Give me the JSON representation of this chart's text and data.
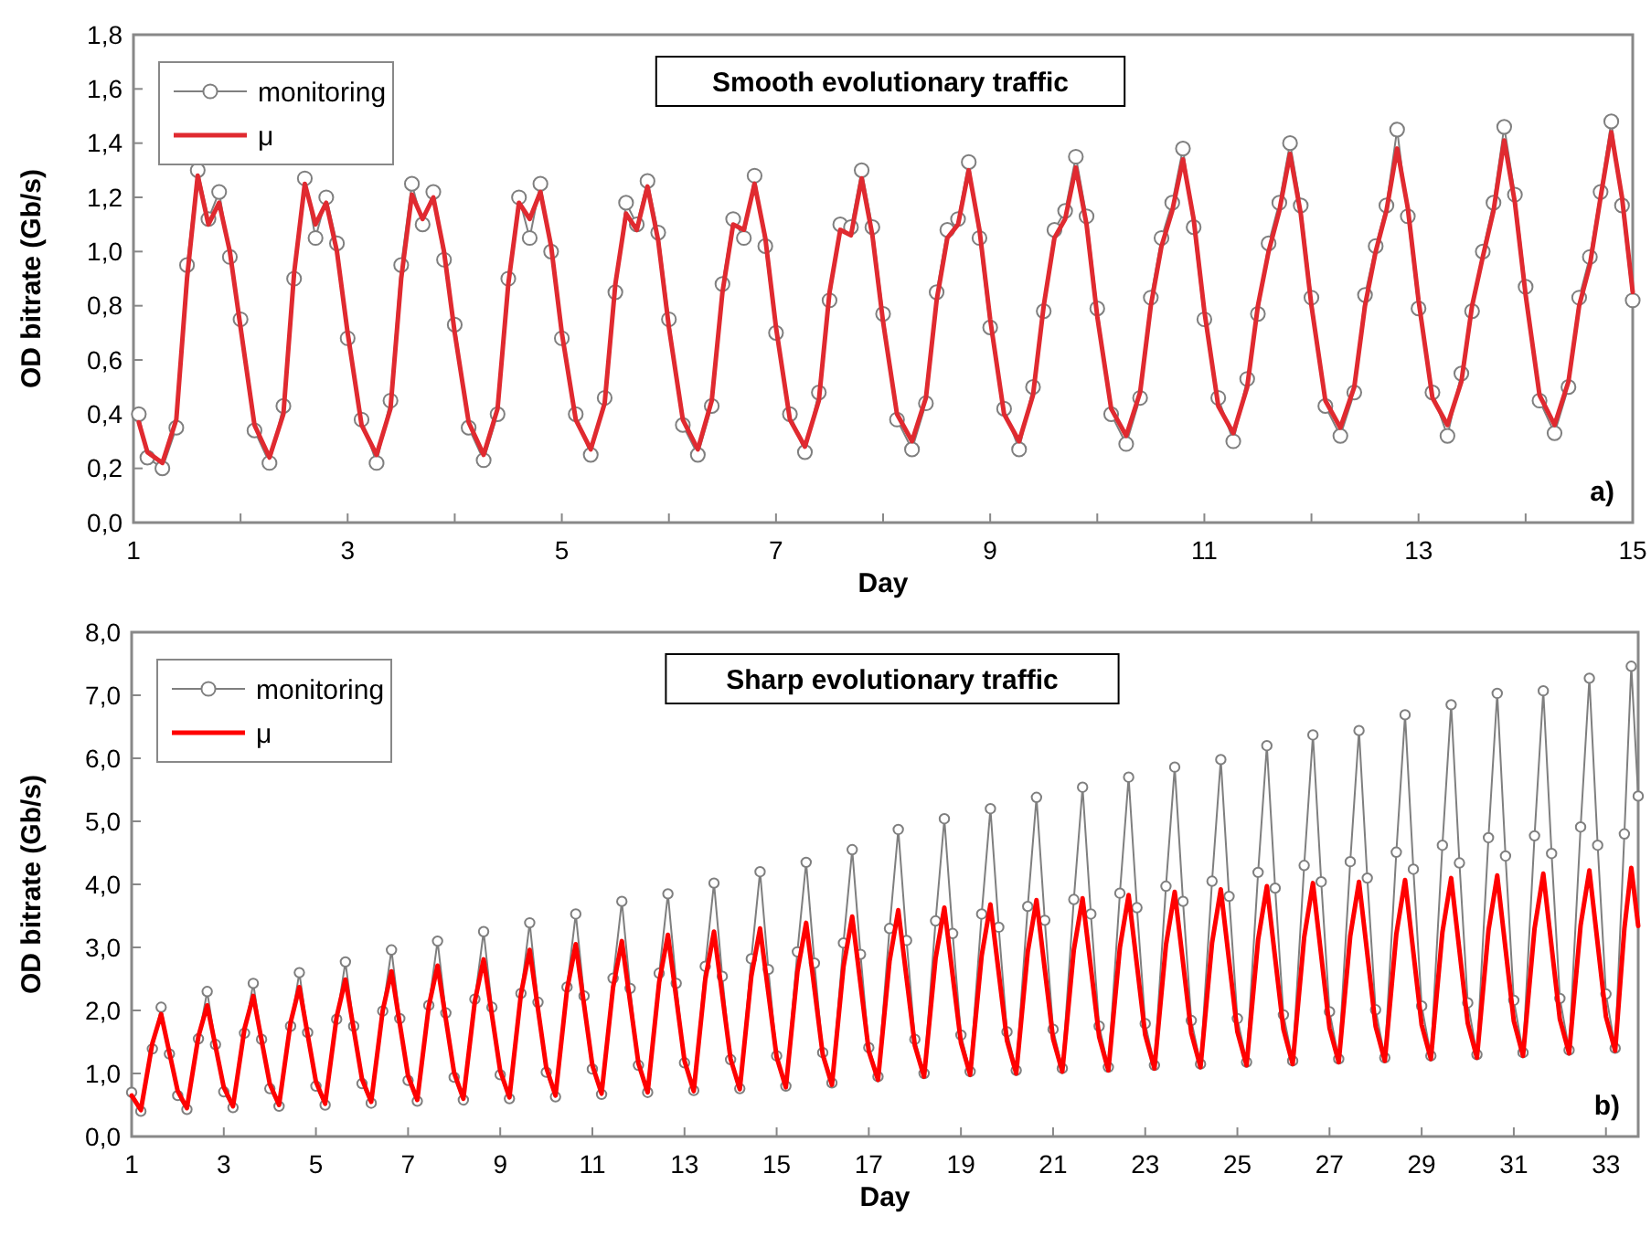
{
  "chart_data": [
    {
      "type": "line",
      "title": "Smooth evolutionary traffic",
      "xlabel": "Day",
      "ylabel": "OD bitrate (Gb/s)",
      "annotations": [
        "a)"
      ],
      "legend": "top left",
      "xlim": [
        1,
        15
      ],
      "xticks": [
        1,
        {
          "value": 2,
          "label": null
        },
        3,
        {
          "value": 4,
          "label": null
        },
        5,
        {
          "value": 6,
          "label": null
        },
        7,
        {
          "value": 8,
          "label": null
        },
        9,
        {
          "value": 10,
          "label": null
        },
        11,
        {
          "value": 12,
          "label": null
        },
        13,
        {
          "value": 14,
          "label": null
        },
        15
      ],
      "ylim": [
        0,
        1.8
      ],
      "yticks": [
        {
          "value": 0,
          "label": "0,0"
        },
        {
          "value": 0.2,
          "label": "0,2"
        },
        {
          "value": 0.4,
          "label": "0,4"
        },
        {
          "value": 0.6,
          "label": "0,6"
        },
        {
          "value": 0.8,
          "label": "0,8"
        },
        {
          "value": 1.0,
          "label": "1,0"
        },
        {
          "value": 1.2,
          "label": "1,2"
        },
        {
          "value": 1.4,
          "label": "1,4"
        },
        {
          "value": 1.6,
          "label": "1,6"
        },
        {
          "value": 1.8,
          "label": "1,8"
        }
      ],
      "x": [
        1.05,
        1.13,
        1.27,
        1.4,
        1.5,
        1.6,
        1.7,
        1.8,
        1.9,
        2,
        2.13,
        2.27,
        2.4,
        2.5,
        2.6,
        2.7,
        2.8,
        2.9,
        3,
        3.13,
        3.27,
        3.4,
        3.5,
        3.6,
        3.7,
        3.8,
        3.9,
        4,
        4.13,
        4.27,
        4.4,
        4.5,
        4.6,
        4.7,
        4.8,
        4.9,
        5,
        5.13,
        5.27,
        5.4,
        5.5,
        5.6,
        5.7,
        5.8,
        5.9,
        6,
        6.13,
        6.27,
        6.4,
        6.5,
        6.6,
        6.7,
        6.8,
        6.9,
        7,
        7.13,
        7.27,
        7.4,
        7.5,
        7.6,
        7.7,
        7.8,
        7.9,
        8,
        8.13,
        8.27,
        8.4,
        8.5,
        8.6,
        8.7,
        8.8,
        8.9,
        9,
        9.13,
        9.27,
        9.4,
        9.5,
        9.6,
        9.7,
        9.8,
        9.9,
        10,
        10.13,
        10.27,
        10.4,
        10.5,
        10.6,
        10.7,
        10.8,
        10.9,
        11,
        11.13,
        11.27,
        11.4,
        11.5,
        11.6,
        11.7,
        11.8,
        11.9,
        12,
        12.13,
        12.27,
        12.4,
        12.5,
        12.6,
        12.7,
        12.8,
        12.9,
        13,
        13.13,
        13.27,
        13.4,
        13.5,
        13.6,
        13.7,
        13.8,
        13.9,
        14,
        14.13,
        14.27,
        14.4,
        14.5,
        14.6,
        14.7,
        14.8,
        14.9,
        15
      ],
      "series": [
        {
          "name": "monitoring",
          "color": "#7f7f7f",
          "marker": "circle",
          "values": [
            0.4,
            0.24,
            0.2,
            0.35,
            0.95,
            1.3,
            1.12,
            1.22,
            0.98,
            0.75,
            0.34,
            0.22,
            0.43,
            0.9,
            1.27,
            1.05,
            1.2,
            1.03,
            0.68,
            0.38,
            0.22,
            0.45,
            0.95,
            1.25,
            1.1,
            1.22,
            0.97,
            0.73,
            0.35,
            0.23,
            0.4,
            0.9,
            1.2,
            1.05,
            1.25,
            1.0,
            0.68,
            0.4,
            0.25,
            0.46,
            0.85,
            1.18,
            1.1,
            1.26,
            1.07,
            0.75,
            0.36,
            0.25,
            0.43,
            0.88,
            1.12,
            1.05,
            1.28,
            1.02,
            0.7,
            0.4,
            0.26,
            0.48,
            0.82,
            1.1,
            1.09,
            1.3,
            1.09,
            0.77,
            0.38,
            0.27,
            0.44,
            0.85,
            1.08,
            1.12,
            1.33,
            1.05,
            0.72,
            0.42,
            0.27,
            0.5,
            0.78,
            1.08,
            1.15,
            1.35,
            1.13,
            0.79,
            0.4,
            0.29,
            0.46,
            0.83,
            1.05,
            1.18,
            1.38,
            1.09,
            0.75,
            0.46,
            0.3,
            0.53,
            0.77,
            1.03,
            1.18,
            1.4,
            1.17,
            0.83,
            0.43,
            0.32,
            0.48,
            0.84,
            1.02,
            1.17,
            1.45,
            1.13,
            0.79,
            0.48,
            0.32,
            0.55,
            0.78,
            1.0,
            1.18,
            1.46,
            1.21,
            0.87,
            0.45,
            0.33,
            0.5,
            0.83,
            0.98,
            1.22,
            1.48,
            1.17,
            0.82
          ]
        },
        {
          "name": "μ",
          "color": "#e02a30",
          "marker": "none",
          "values": [
            0.37,
            0.26,
            0.22,
            0.38,
            0.9,
            1.28,
            1.1,
            1.18,
            1.0,
            0.72,
            0.36,
            0.24,
            0.4,
            0.92,
            1.25,
            1.1,
            1.18,
            1.0,
            0.7,
            0.36,
            0.25,
            0.42,
            0.9,
            1.21,
            1.12,
            1.2,
            1.0,
            0.7,
            0.37,
            0.25,
            0.42,
            0.88,
            1.18,
            1.12,
            1.22,
            1.02,
            0.7,
            0.38,
            0.27,
            0.44,
            0.88,
            1.14,
            1.08,
            1.24,
            1.04,
            0.72,
            0.38,
            0.27,
            0.45,
            0.85,
            1.1,
            1.08,
            1.25,
            1.05,
            0.72,
            0.38,
            0.28,
            0.45,
            0.85,
            1.08,
            1.06,
            1.27,
            1.06,
            0.74,
            0.4,
            0.3,
            0.46,
            0.82,
            1.05,
            1.1,
            1.3,
            1.08,
            0.75,
            0.4,
            0.3,
            0.47,
            0.8,
            1.05,
            1.12,
            1.31,
            1.1,
            0.76,
            0.42,
            0.32,
            0.48,
            0.8,
            1.02,
            1.15,
            1.34,
            1.12,
            0.78,
            0.43,
            0.33,
            0.5,
            0.8,
            1.0,
            1.15,
            1.36,
            1.14,
            0.8,
            0.45,
            0.35,
            0.5,
            0.8,
            1.0,
            1.15,
            1.38,
            1.16,
            0.82,
            0.46,
            0.36,
            0.52,
            0.8,
            0.98,
            1.15,
            1.41,
            1.18,
            0.84,
            0.47,
            0.36,
            0.52,
            0.8,
            0.95,
            1.2,
            1.44,
            1.2,
            0.85
          ]
        }
      ]
    },
    {
      "type": "line",
      "title": "Sharp evolutionary traffic",
      "xlabel": "Day",
      "ylabel": "OD bitrate (Gb/s)",
      "annotations": [
        "b)"
      ],
      "legend": "top left",
      "xlim": [
        1,
        33.7
      ],
      "xticks": [
        1,
        3,
        5,
        7,
        9,
        11,
        13,
        15,
        17,
        19,
        21,
        23,
        25,
        27,
        29,
        31,
        33
      ],
      "ylim": [
        0,
        8
      ],
      "yticks": [
        {
          "value": 0,
          "label": "0,0"
        },
        {
          "value": 1,
          "label": "1,0"
        },
        {
          "value": 2,
          "label": "2,0"
        },
        {
          "value": 3,
          "label": "3,0"
        },
        {
          "value": 4,
          "label": "4,0"
        },
        {
          "value": 5,
          "label": "5,0"
        },
        {
          "value": 6,
          "label": "6,0"
        },
        {
          "value": 7,
          "label": "7,0"
        },
        {
          "value": 8,
          "label": "8,0"
        }
      ],
      "x": [
        1.0,
        1.2,
        1.45,
        1.64,
        1.82,
        2.0,
        2.2,
        2.45,
        2.64,
        2.82,
        3.0,
        3.2,
        3.45,
        3.64,
        3.82,
        4.0,
        4.2,
        4.45,
        4.64,
        4.82,
        5.0,
        5.2,
        5.45,
        5.64,
        5.82,
        6.0,
        6.2,
        6.45,
        6.64,
        6.82,
        7.0,
        7.2,
        7.45,
        7.64,
        7.82,
        8.0,
        8.2,
        8.45,
        8.64,
        8.82,
        9.0,
        9.2,
        9.45,
        9.64,
        9.82,
        10.0,
        10.2,
        10.45,
        10.64,
        10.82,
        11.0,
        11.2,
        11.45,
        11.64,
        11.82,
        12.0,
        12.2,
        12.45,
        12.64,
        12.82,
        13.0,
        13.2,
        13.45,
        13.64,
        13.82,
        14.0,
        14.2,
        14.45,
        14.64,
        14.82,
        15.0,
        15.2,
        15.45,
        15.64,
        15.82,
        16.0,
        16.2,
        16.45,
        16.64,
        16.82,
        17.0,
        17.2,
        17.45,
        17.64,
        17.82,
        18.0,
        18.2,
        18.45,
        18.64,
        18.82,
        19.0,
        19.2,
        19.45,
        19.64,
        19.82,
        20.0,
        20.2,
        20.45,
        20.64,
        20.82,
        21.0,
        21.2,
        21.45,
        21.64,
        21.82,
        22.0,
        22.2,
        22.45,
        22.64,
        22.82,
        23.0,
        23.2,
        23.45,
        23.64,
        23.82,
        24.0,
        24.2,
        24.45,
        24.64,
        24.82,
        25.0,
        25.2,
        25.45,
        25.64,
        25.82,
        26.0,
        26.2,
        26.45,
        26.64,
        26.82,
        27.0,
        27.2,
        27.45,
        27.64,
        27.82,
        28.0,
        28.2,
        28.45,
        28.64,
        28.82,
        29.0,
        29.2,
        29.45,
        29.64,
        29.82,
        30.0,
        30.2,
        30.45,
        30.64,
        30.82,
        31.0,
        31.2,
        31.45,
        31.64,
        31.82,
        32.0,
        32.2,
        32.45,
        32.64,
        32.82,
        33.0,
        33.2,
        33.4,
        33.55,
        33.7
      ],
      "series": [
        {
          "name": "monitoring",
          "color": "#7f7f7f",
          "marker": "circle",
          "values": [
            0.7,
            0.4,
            1.39,
            2.05,
            1.31,
            0.65,
            0.43,
            1.55,
            2.3,
            1.46,
            0.71,
            0.46,
            1.64,
            2.43,
            1.54,
            0.76,
            0.48,
            1.75,
            2.6,
            1.65,
            0.8,
            0.5,
            1.86,
            2.77,
            1.75,
            0.84,
            0.53,
            1.99,
            2.96,
            1.87,
            0.89,
            0.56,
            2.08,
            3.1,
            1.96,
            0.94,
            0.58,
            2.18,
            3.25,
            2.05,
            0.98,
            0.6,
            2.27,
            3.39,
            2.13,
            1.02,
            0.63,
            2.37,
            3.53,
            2.23,
            1.07,
            0.67,
            2.51,
            3.73,
            2.35,
            1.13,
            0.7,
            2.59,
            3.85,
            2.43,
            1.17,
            0.73,
            2.7,
            4.02,
            2.54,
            1.22,
            0.76,
            2.82,
            4.2,
            2.65,
            1.28,
            0.8,
            2.93,
            4.35,
            2.75,
            1.33,
            0.85,
            3.07,
            4.55,
            2.89,
            1.41,
            0.95,
            3.3,
            4.87,
            3.11,
            1.54,
            1.0,
            3.42,
            5.04,
            3.22,
            1.61,
            1.03,
            3.53,
            5.2,
            3.32,
            1.66,
            1.05,
            3.65,
            5.38,
            3.43,
            1.7,
            1.08,
            3.76,
            5.54,
            3.53,
            1.75,
            1.1,
            3.86,
            5.7,
            3.63,
            1.79,
            1.13,
            3.97,
            5.86,
            3.73,
            1.84,
            1.15,
            4.05,
            5.98,
            3.81,
            1.87,
            1.18,
            4.19,
            6.2,
            3.94,
            1.93,
            1.2,
            4.3,
            6.37,
            4.04,
            1.98,
            1.23,
            4.36,
            6.44,
            4.1,
            2.01,
            1.25,
            4.51,
            6.69,
            4.24,
            2.07,
            1.28,
            4.62,
            6.85,
            4.34,
            2.12,
            1.3,
            4.74,
            7.03,
            4.45,
            2.16,
            1.33,
            4.77,
            7.07,
            4.49,
            2.19,
            1.37,
            4.91,
            7.27,
            4.62,
            2.26,
            1.4,
            4.8,
            7.46,
            5.4
          ]
        },
        {
          "name": "μ",
          "color": "#ff0000",
          "marker": "none",
          "values": [
            0.65,
            0.42,
            1.48,
            1.94,
            1.33,
            0.72,
            0.45,
            1.59,
            2.08,
            1.43,
            0.78,
            0.48,
            1.71,
            2.23,
            1.53,
            0.83,
            0.5,
            1.81,
            2.37,
            1.62,
            0.87,
            0.52,
            1.9,
            2.49,
            1.7,
            0.91,
            0.55,
            2.0,
            2.62,
            1.79,
            0.96,
            0.58,
            2.07,
            2.71,
            1.86,
            1.01,
            0.6,
            2.15,
            2.81,
            1.93,
            1.04,
            0.62,
            2.26,
            2.96,
            2.02,
            1.09,
            0.65,
            2.33,
            3.05,
            2.09,
            1.13,
            0.68,
            2.37,
            3.1,
            2.13,
            1.16,
            0.7,
            2.45,
            3.2,
            2.2,
            1.2,
            0.72,
            2.49,
            3.25,
            2.24,
            1.23,
            0.75,
            2.54,
            3.3,
            2.28,
            1.26,
            0.78,
            2.61,
            3.39,
            2.35,
            1.3,
            0.82,
            2.69,
            3.49,
            2.42,
            1.35,
            0.9,
            2.78,
            3.59,
            2.51,
            1.44,
            0.95,
            2.83,
            3.63,
            2.56,
            1.49,
            0.98,
            2.87,
            3.68,
            2.6,
            1.52,
            1.0,
            2.93,
            3.75,
            2.65,
            1.55,
            1.03,
            2.96,
            3.78,
            2.68,
            1.58,
            1.05,
            3.0,
            3.83,
            2.72,
            1.61,
            1.08,
            3.04,
            3.88,
            2.76,
            1.64,
            1.1,
            3.07,
            3.92,
            2.79,
            1.66,
            1.13,
            3.12,
            3.97,
            2.83,
            1.7,
            1.15,
            3.16,
            4.02,
            2.87,
            1.72,
            1.18,
            3.18,
            4.04,
            2.9,
            1.75,
            1.2,
            3.21,
            4.07,
            2.92,
            1.77,
            1.23,
            3.24,
            4.1,
            2.95,
            1.8,
            1.25,
            3.27,
            4.14,
            2.98,
            1.83,
            1.28,
            3.3,
            4.17,
            3.01,
            1.86,
            1.32,
            3.35,
            4.22,
            3.06,
            1.9,
            1.36,
            3.3,
            4.26,
            3.34
          ]
        }
      ]
    }
  ]
}
